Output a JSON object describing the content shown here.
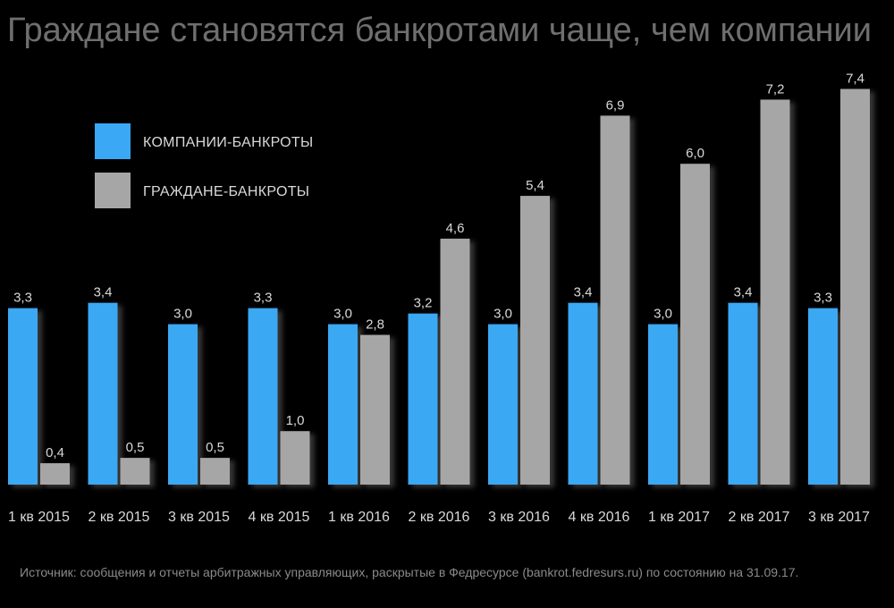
{
  "chart_data": {
    "type": "bar",
    "title": "Граждане становятся банкротами чаще, чем компании",
    "xlabel": "",
    "ylabel": "",
    "ylim": [
      0,
      8
    ],
    "grid": false,
    "legend_position": "top-left",
    "categories": [
      "1 кв 2015",
      "2 кв 2015",
      "3 кв 2015",
      "4 кв 2015",
      "1 кв 2016",
      "2 кв 2016",
      "3 кв 2016",
      "4 кв 2016",
      "1 кв 2017",
      "2 кв 2017",
      "3 кв 2017"
    ],
    "series": [
      {
        "name": "КОМПАНИИ-БАНКРОТЫ",
        "color": "#3aa8f4",
        "values": [
          3.3,
          3.4,
          3.0,
          3.3,
          3.0,
          3.2,
          3.0,
          3.4,
          3.0,
          3.4,
          3.3
        ],
        "labels": [
          "3,3",
          "3,4",
          "3,0",
          "3,3",
          "3,0",
          "3,2",
          "3,0",
          "3,4",
          "3,0",
          "3,4",
          "3,3"
        ]
      },
      {
        "name": "ГРАЖДАНЕ-БАНКРОТЫ",
        "color": "#a6a6a6",
        "values": [
          0.4,
          0.5,
          0.5,
          1.0,
          2.8,
          4.6,
          5.4,
          6.9,
          6.0,
          7.2,
          7.4
        ],
        "labels": [
          "0,4",
          "0,5",
          "0,5",
          "1,0",
          "2,8",
          "4,6",
          "5,4",
          "6,9",
          "6,0",
          "7,2",
          "7,4"
        ]
      }
    ],
    "source": "Источник: сообщения и отчеты арбитражных управляющих, раскрытые в Федресурсе (bankrot.fedresurs.ru) по состоянию на 31.09.17."
  }
}
